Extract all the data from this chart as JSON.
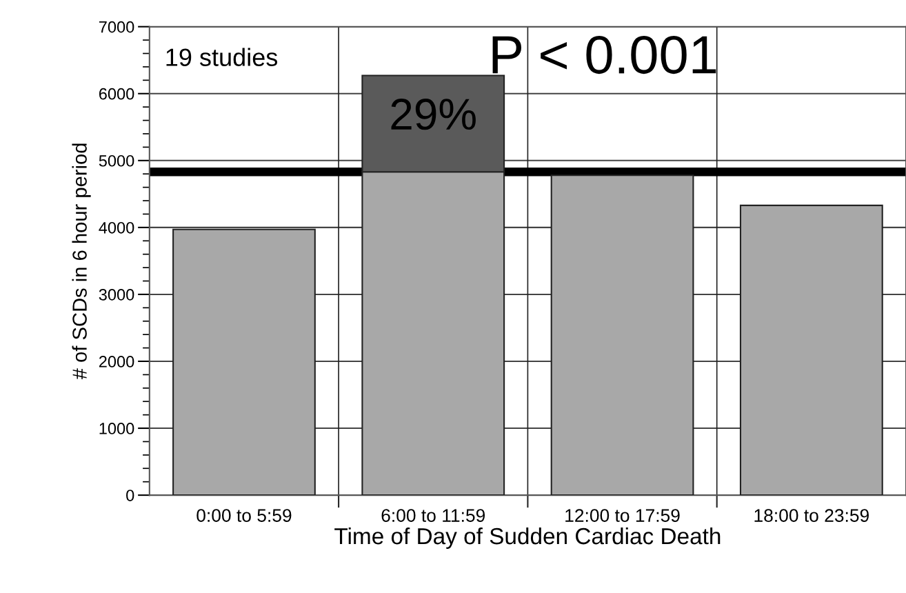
{
  "chart_data": {
    "type": "bar",
    "xlabel": "Time of Day of Sudden Cardiac Death",
    "ylabel": "# of SCDs in 6 hour period",
    "categories": [
      "0:00 to 5:59",
      "6:00 to 11:59",
      "12:00 to 17:59",
      "18:00 to 23:59"
    ],
    "stacked": true,
    "series": [
      {
        "color": "#a8a8a8",
        "values": [
          3970,
          4830,
          4780,
          4330
        ]
      },
      {
        "color": "#5a5a5a",
        "values": [
          null,
          1440,
          null,
          null
        ]
      }
    ],
    "ylim": [
      0,
      7000
    ],
    "yticks": [
      0,
      1000,
      2000,
      3000,
      4000,
      5000,
      6000,
      7000
    ],
    "grid": true,
    "ref_lines": [
      {
        "axis": "y",
        "value": 4830,
        "color": "#000000"
      }
    ],
    "annotations": [
      "19 studies",
      "P < 0.001",
      "29%"
    ]
  }
}
